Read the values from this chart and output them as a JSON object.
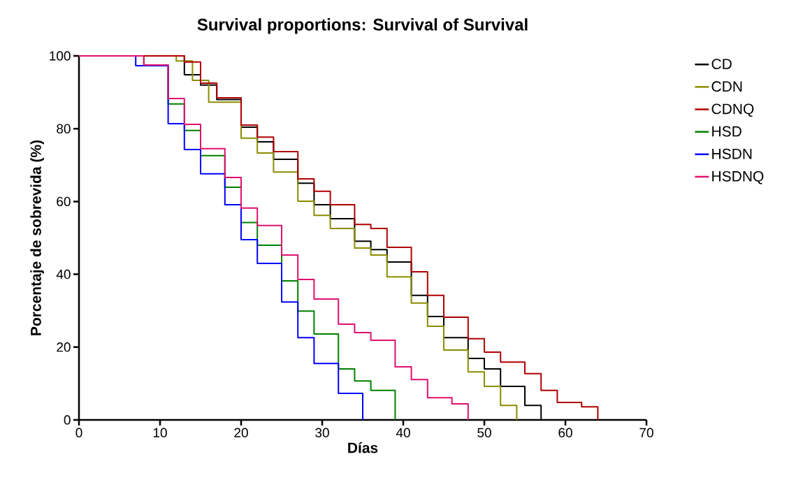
{
  "chart_data": {
    "type": "step",
    "title": "Survival proportions: Survival of Survival",
    "xlabel": "Días",
    "ylabel": "Porcentaje de sobrevida (%)",
    "xlim": [
      0,
      70
    ],
    "ylim": [
      0,
      100
    ],
    "xticks": [
      0,
      10,
      20,
      30,
      40,
      50,
      60,
      70
    ],
    "yticks": [
      0,
      20,
      40,
      60,
      80,
      100
    ],
    "legend": "right",
    "series": [
      {
        "name": "CD",
        "color": "#000000",
        "x": [
          0,
          13,
          15,
          17,
          20,
          22,
          24,
          27,
          29,
          31,
          34,
          36,
          38,
          41,
          43,
          45,
          48,
          50,
          52,
          55,
          57
        ],
        "values": [
          100,
          94.8,
          92,
          88,
          80.4,
          76.4,
          71.6,
          65,
          59.1,
          55.3,
          49.1,
          46.8,
          43.4,
          34.2,
          28.4,
          22.6,
          16.9,
          14,
          9.2,
          4,
          0
        ]
      },
      {
        "name": "CDN",
        "color": "#8c8c00",
        "x": [
          0,
          12,
          14,
          16,
          20,
          22,
          24,
          27,
          29,
          31,
          34,
          36,
          38,
          41,
          43,
          45,
          48,
          50,
          52,
          54
        ],
        "values": [
          100,
          98.6,
          93.3,
          87.3,
          77.4,
          73.3,
          68.1,
          60.1,
          56.2,
          52.6,
          47.2,
          45.3,
          39.3,
          32.1,
          25.7,
          19.2,
          13.2,
          9.2,
          4,
          0
        ]
      },
      {
        "name": "CDNQ",
        "color": "#b00000",
        "x": [
          0,
          13,
          15,
          17,
          20,
          22,
          24,
          27,
          29,
          31,
          34,
          36,
          38,
          41,
          43,
          45,
          48,
          50,
          52,
          55,
          57,
          59,
          62,
          64
        ],
        "values": [
          100,
          98.3,
          92.5,
          88.5,
          81,
          77.7,
          73.7,
          66.2,
          62.8,
          59.1,
          53.7,
          52.6,
          47.4,
          40.7,
          34.2,
          28.2,
          22.3,
          18.6,
          15.9,
          12.7,
          8.1,
          4.8,
          3.6,
          0
        ]
      },
      {
        "name": "HSD",
        "color": "#008000",
        "x": [
          0,
          8,
          11,
          13,
          15,
          18,
          20,
          22,
          25,
          27,
          29,
          32,
          34,
          36,
          39
        ],
        "values": [
          100,
          97.5,
          86.8,
          79.5,
          72.6,
          63.9,
          54.2,
          48,
          38.2,
          29.9,
          23.6,
          14,
          10.7,
          8.1,
          0
        ]
      },
      {
        "name": "HSDN",
        "color": "#0000ff",
        "x": [
          0,
          7,
          11,
          13,
          15,
          18,
          20,
          22,
          25,
          27,
          29,
          32,
          35
        ],
        "values": [
          100,
          97.3,
          81.4,
          74.3,
          67.6,
          59.1,
          49.5,
          43,
          32.4,
          22.6,
          15.5,
          7.3,
          0
        ]
      },
      {
        "name": "HSDNQ",
        "color": "#e0106e",
        "x": [
          0,
          8,
          11,
          13,
          15,
          18,
          20,
          22,
          25,
          27,
          29,
          32,
          34,
          36,
          39,
          41,
          43,
          46,
          48
        ],
        "values": [
          100,
          97.5,
          88.3,
          81.2,
          74.5,
          66.6,
          58.2,
          53.4,
          45.3,
          38.6,
          33.2,
          26.3,
          24,
          21.9,
          14.6,
          11.1,
          6.1,
          4.4,
          0
        ]
      }
    ]
  }
}
